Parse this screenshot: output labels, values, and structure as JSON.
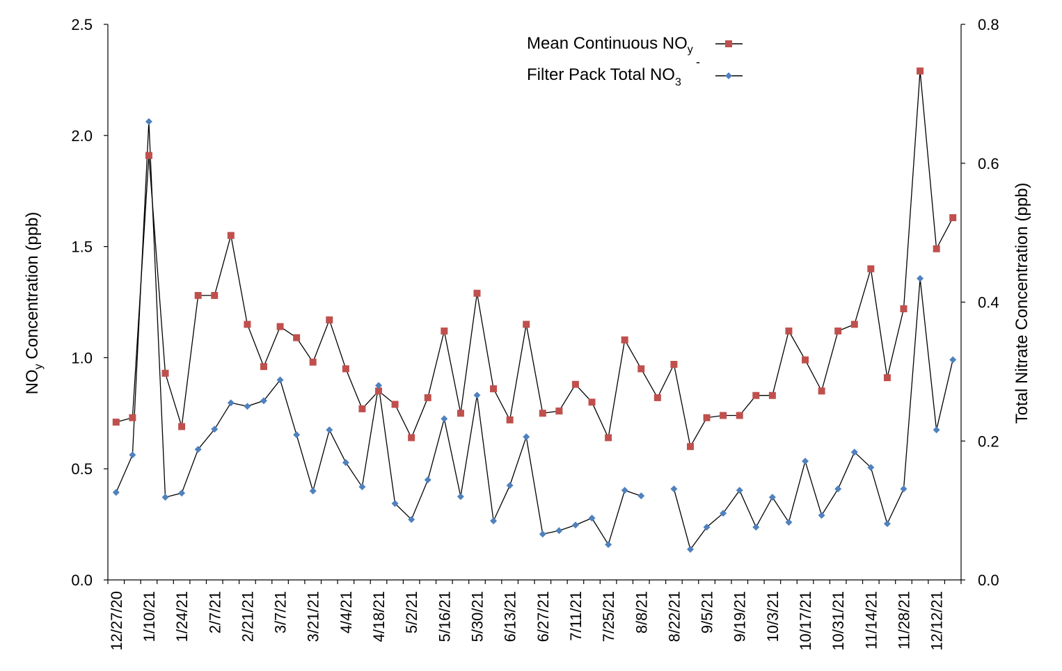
{
  "chart_data": {
    "type": "line",
    "title": "",
    "xlabel": "",
    "ylabel": "NO",
    "ylabel_sub": "y",
    "ylabel_rest": " Concentration (ppb)",
    "y2label": "Total Nitrate Concentration (ppb)",
    "ylim": [
      0,
      2.5
    ],
    "y2lim": [
      0,
      0.8
    ],
    "yticks": [
      "0.0",
      "0.5",
      "1.0",
      "1.5",
      "2.0",
      "2.5"
    ],
    "y2ticks": [
      "0.0",
      "0.2",
      "0.4",
      "0.6",
      "0.8"
    ],
    "x_tick_labels": [
      "12/27/20",
      "1/10/21",
      "1/24/21",
      "2/7/21",
      "2/21/21",
      "3/7/21",
      "3/21/21",
      "4/4/21",
      "4/18/21",
      "5/2/21",
      "5/16/21",
      "5/30/21",
      "6/13/21",
      "6/27/21",
      "7/11/21",
      "7/25/21",
      "8/8/21",
      "8/22/21",
      "9/5/21",
      "9/19/21",
      "10/3/21",
      "10/17/21",
      "10/31/21",
      "11/14/21",
      "11/28/21",
      "12/12/21"
    ],
    "num_points": 52,
    "legend_position": "top-center",
    "series": [
      {
        "name": "Mean Continuous NO",
        "name_sub": "y",
        "axis": "left",
        "color": "#c0504d",
        "marker": "square",
        "values": [
          0.71,
          0.73,
          1.91,
          0.93,
          0.69,
          1.28,
          1.28,
          1.55,
          1.15,
          0.96,
          1.14,
          1.09,
          0.98,
          1.17,
          0.95,
          0.77,
          0.85,
          0.79,
          0.64,
          0.82,
          1.12,
          0.75,
          1.29,
          0.86,
          0.72,
          1.15,
          0.75,
          0.76,
          0.88,
          0.8,
          0.64,
          1.08,
          0.95,
          0.82,
          0.97,
          0.6,
          0.73,
          0.74,
          0.74,
          0.83,
          0.83,
          1.12,
          0.99,
          0.85,
          1.12,
          1.15,
          1.4,
          0.91,
          1.22,
          2.29,
          1.49,
          1.63
        ]
      },
      {
        "name": "Filter Pack Total NO",
        "name_sub": "3",
        "name_sup": "-",
        "axis": "right",
        "color": "#4f81bd",
        "marker": "diamond",
        "values": [
          0.126,
          0.18,
          0.66,
          0.119,
          0.125,
          0.188,
          0.217,
          0.255,
          0.25,
          0.258,
          0.288,
          0.209,
          0.128,
          0.216,
          0.169,
          0.134,
          0.28,
          0.11,
          0.087,
          0.144,
          0.232,
          0.12,
          0.266,
          0.085,
          0.136,
          0.206,
          0.066,
          0.071,
          0.079,
          0.089,
          0.051,
          0.129,
          0.121,
          null,
          0.131,
          0.044,
          0.076,
          0.096,
          0.129,
          0.076,
          0.119,
          0.083,
          0.171,
          0.093,
          0.131,
          0.184,
          0.162,
          0.081,
          0.131,
          0.434,
          0.216,
          0.317
        ]
      }
    ]
  }
}
